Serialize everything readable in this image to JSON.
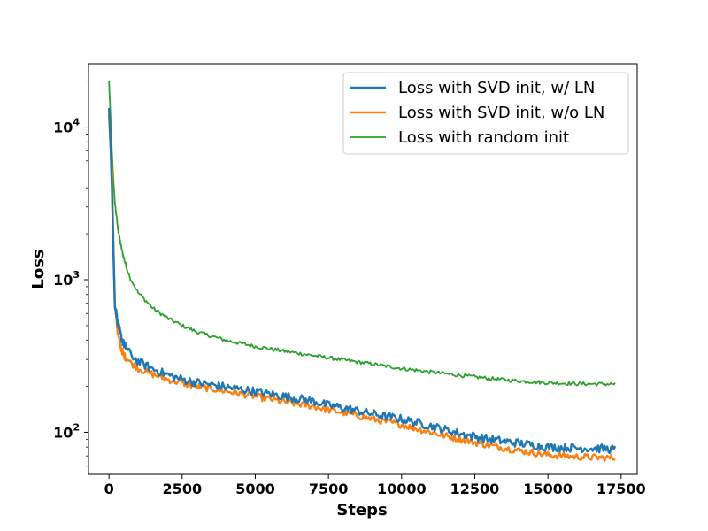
{
  "chart_data": {
    "type": "line",
    "title": "",
    "xlabel": "Steps",
    "ylabel": "Loss",
    "yscale": "log",
    "xlim": [
      -700,
      18050
    ],
    "ylim": [
      53,
      26000
    ],
    "x_ticks": [
      0,
      2500,
      5000,
      7500,
      10000,
      12500,
      15000,
      17500
    ],
    "x_tick_labels": [
      "0",
      "2500",
      "5000",
      "7500",
      "10000",
      "12500",
      "15000",
      "17500"
    ],
    "y_ticks": [
      100,
      1000,
      10000
    ],
    "y_tick_labels": [
      {
        "base": "10",
        "exp": "2"
      },
      {
        "base": "10",
        "exp": "3"
      },
      {
        "base": "10",
        "exp": "4"
      }
    ],
    "legend_position": "top-right",
    "series": [
      {
        "name": "Loss with SVD init, w/ LN",
        "color": "#1f77b4",
        "x": [
          0,
          50,
          100,
          150,
          200,
          300,
          400,
          500,
          700,
          1000,
          1500,
          2000,
          2500,
          3000,
          4000,
          5000,
          6000,
          7000,
          7500,
          8000,
          9000,
          10000,
          11000,
          12000,
          13000,
          14000,
          15000,
          16000,
          17000,
          17300
        ],
        "values": [
          13500,
          8000,
          4000,
          1500,
          700,
          520,
          430,
          380,
          330,
          290,
          260,
          238,
          222,
          212,
          198,
          185,
          172,
          160,
          150,
          145,
          132,
          122,
          110,
          98,
          90,
          85,
          80,
          79,
          78,
          77
        ]
      },
      {
        "name": "Loss with SVD init, w/o LN",
        "color": "#ff7f0e",
        "x": [
          0,
          50,
          100,
          150,
          200,
          300,
          400,
          500,
          700,
          1000,
          1500,
          2000,
          2500,
          3000,
          4000,
          5000,
          6000,
          7000,
          7500,
          8000,
          9000,
          10000,
          11000,
          12000,
          13000,
          14000,
          15000,
          16000,
          17000,
          17300
        ],
        "values": [
          12000,
          7500,
          5000,
          1800,
          700,
          450,
          360,
          320,
          290,
          262,
          240,
          222,
          210,
          200,
          186,
          172,
          158,
          148,
          140,
          135,
          122,
          112,
          100,
          90,
          82,
          76,
          71,
          69,
          68,
          68
        ]
      },
      {
        "name": "Loss with random init",
        "color": "#2ca02c",
        "x": [
          0,
          50,
          100,
          150,
          200,
          300,
          400,
          500,
          700,
          1000,
          1500,
          2000,
          2500,
          3000,
          4000,
          5000,
          6000,
          7000,
          8000,
          9000,
          10000,
          11000,
          12000,
          13000,
          14000,
          15000,
          16000,
          17000,
          17300
        ],
        "values": [
          20000,
          12000,
          7000,
          4500,
          3200,
          2200,
          1700,
          1400,
          1050,
          820,
          650,
          560,
          500,
          455,
          400,
          365,
          340,
          318,
          298,
          280,
          262,
          248,
          236,
          225,
          217,
          211,
          208,
          207,
          207
        ]
      }
    ]
  }
}
